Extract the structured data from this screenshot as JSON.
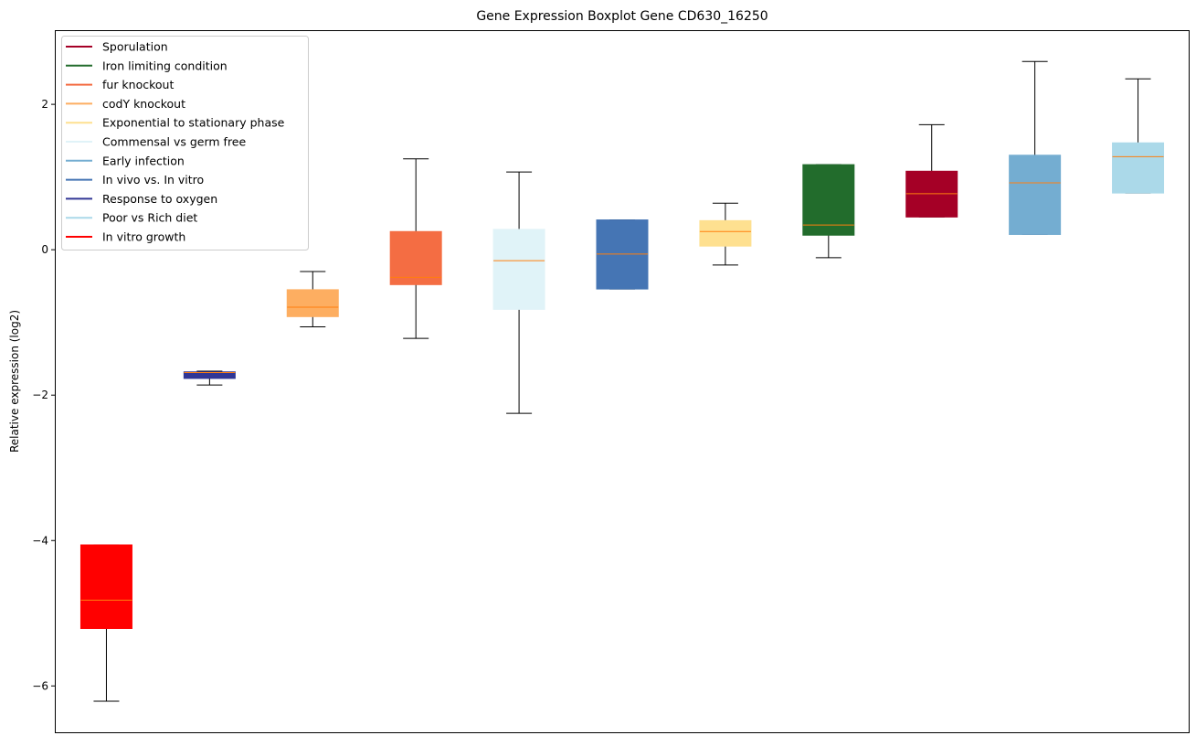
{
  "chart_data": {
    "type": "boxplot",
    "title": "Gene Expression Boxplot Gene CD630_16250",
    "xlabel": "",
    "ylabel": "Relative expression (log2)",
    "ylim": [
      -6.65,
      3.02
    ],
    "yticks": [
      -6,
      -4,
      -2,
      0,
      2
    ],
    "ytick_labels": [
      "−6",
      "−4",
      "−2",
      "0",
      "2"
    ],
    "grid": false,
    "legend_position": "top-left",
    "legend": [
      {
        "label": "Sporulation",
        "color": "#a50026"
      },
      {
        "label": "Iron limiting condition",
        "color": "#226c2c"
      },
      {
        "label": "fur knockout",
        "color": "#f46d43"
      },
      {
        "label": "codY knockout",
        "color": "#fdae61"
      },
      {
        "label": "Exponential to stationary phase",
        "color": "#fee090"
      },
      {
        "label": "Commensal vs germ free",
        "color": "#e0f3f8"
      },
      {
        "label": "Early infection",
        "color": "#74add1"
      },
      {
        "label": "In vivo vs. In vitro",
        "color": "#4575b4"
      },
      {
        "label": "Response to oxygen",
        "color": "#313695"
      },
      {
        "label": "Poor vs Rich diet",
        "color": "#abd9e9"
      },
      {
        "label": "In vitro growth",
        "color": "#ff0000"
      }
    ],
    "median_color": "#ff7f0e",
    "boxes": [
      {
        "name": "In vitro growth",
        "color": "#ff0000",
        "whisker_low": -6.21,
        "q1": -5.21,
        "median": -4.82,
        "q3": -4.06,
        "whisker_high": -4.06
      },
      {
        "name": "Response to oxygen",
        "color": "#313695",
        "whisker_low": -1.86,
        "q1": -1.77,
        "median": -1.69,
        "q3": -1.68,
        "whisker_high": -1.67
      },
      {
        "name": "codY knockout",
        "color": "#fdae61",
        "whisker_low": -1.06,
        "q1": -0.92,
        "median": -0.79,
        "q3": -0.55,
        "whisker_high": -0.3
      },
      {
        "name": "fur knockout",
        "color": "#f46d43",
        "whisker_low": -1.22,
        "q1": -0.48,
        "median": -0.38,
        "q3": 0.25,
        "whisker_high": 1.25
      },
      {
        "name": "Commensal vs germ free",
        "color": "#e0f3f8",
        "whisker_low": -2.25,
        "q1": -0.82,
        "median": -0.15,
        "q3": 0.28,
        "whisker_high": 1.07
      },
      {
        "name": "In vivo vs. In vitro",
        "color": "#4575b4",
        "whisker_low": -0.54,
        "q1": -0.54,
        "median": -0.06,
        "q3": 0.41,
        "whisker_high": 0.41
      },
      {
        "name": "Exponential to stationary phase",
        "color": "#fee090",
        "whisker_low": -0.21,
        "q1": 0.05,
        "median": 0.25,
        "q3": 0.4,
        "whisker_high": 0.64
      },
      {
        "name": "Iron limiting condition",
        "color": "#226c2c",
        "whisker_low": -0.11,
        "q1": 0.2,
        "median": 0.34,
        "q3": 1.17,
        "whisker_high": 1.17
      },
      {
        "name": "Sporulation",
        "color": "#a50026",
        "whisker_low": 0.45,
        "q1": 0.45,
        "median": 0.77,
        "q3": 1.08,
        "whisker_high": 1.72
      },
      {
        "name": "Early infection",
        "color": "#74add1",
        "whisker_low": 0.21,
        "q1": 0.21,
        "median": 0.92,
        "q3": 1.3,
        "whisker_high": 2.59
      },
      {
        "name": "Poor vs Rich diet",
        "color": "#abd9e9",
        "whisker_low": 0.78,
        "q1": 0.78,
        "median": 1.28,
        "q3": 1.47,
        "whisker_high": 2.35
      }
    ]
  }
}
